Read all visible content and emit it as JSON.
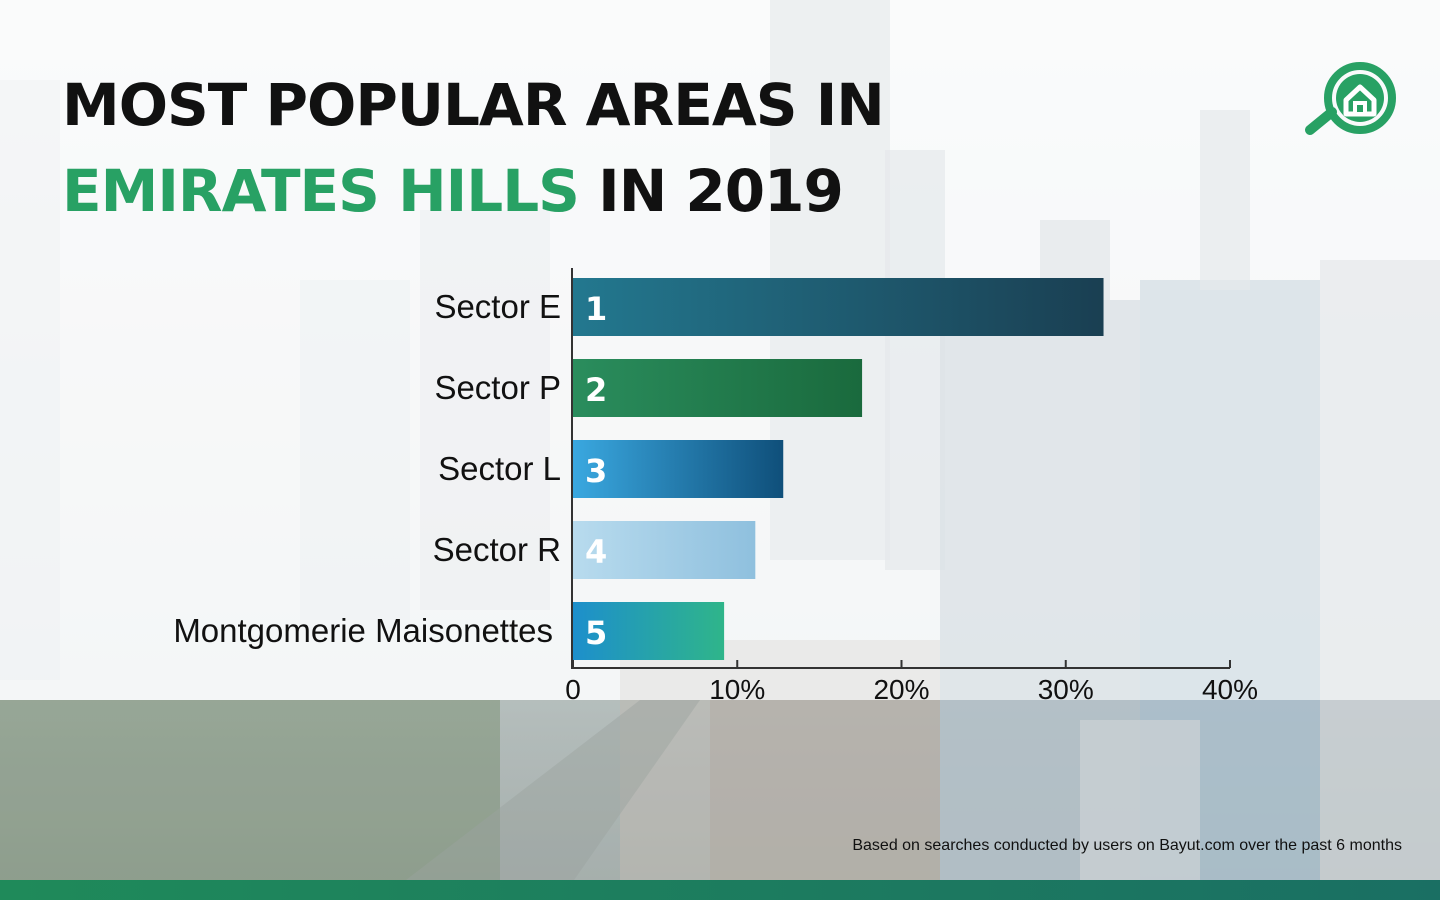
{
  "header": {
    "title_line1": "MOST POPULAR AREAS IN",
    "title_accent": "EMIRATES HILLS",
    "title_line2_rest": " IN 2019"
  },
  "logo": {
    "icon": "bayut-house-search-icon",
    "color": "#28a164"
  },
  "footnote": "Based on searches conducted by users on Bayut.com over the past 6 months",
  "colors": {
    "accent": "#28a164",
    "bottom_bar": "#1f8a5a"
  },
  "chart_data": {
    "type": "bar",
    "orientation": "horizontal",
    "categories": [
      "Sector E",
      "Sector P",
      "Sector L",
      "Sector R",
      "Montgomerie Maisonettes"
    ],
    "values": [
      32.3,
      17.6,
      12.8,
      11.1,
      9.2
    ],
    "ranks": [
      "1",
      "2",
      "3",
      "4",
      "5"
    ],
    "xlim": [
      0,
      40
    ],
    "xticks": [
      0,
      10,
      20,
      30,
      40
    ],
    "xtick_labels": [
      "0",
      "10%",
      "20%",
      "30%",
      "40%"
    ],
    "bar_gradients": [
      [
        "#23788f",
        "#1a3f52"
      ],
      [
        "#2a8d5d",
        "#1a6a3d"
      ],
      [
        "#3aa8e0",
        "#0f4f7a"
      ],
      [
        "#b8dbee",
        "#8fc0de"
      ],
      [
        "#1d8fcc",
        "#2fb58a"
      ]
    ],
    "grid": false
  }
}
